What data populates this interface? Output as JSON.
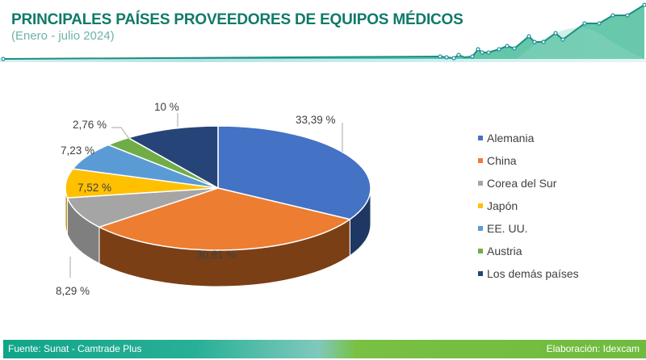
{
  "header": {
    "title": "PRINCIPALES PAÍSES PROVEEDORES DE EQUIPOS MÉDICOS",
    "subtitle": "(Enero - julio 2024)"
  },
  "footer": {
    "source": "Fuente: Sunat - Camtrade Plus",
    "credit": "Elaboración: Idexcam"
  },
  "colors": {
    "title": "#0f7a68",
    "accent": "#1aa58b",
    "footer_green": "#6fbb3f"
  },
  "chart_data": {
    "type": "pie",
    "variant": "3d",
    "title": "PRINCIPALES PAÍSES PROVEEDORES DE EQUIPOS MÉDICOS",
    "subtitle": "(Enero - julio 2024)",
    "categories": [
      "Alemania",
      "China",
      "Corea del Sur",
      "Japón",
      "EE. UU.",
      "Austria",
      "Los demás países"
    ],
    "values": [
      33.39,
      30.81,
      8.29,
      7.52,
      7.23,
      2.76,
      10
    ],
    "labels": [
      "33,39 %",
      "30,81 %",
      "8,29 %",
      "7,52 %",
      "7,23 %",
      "2,76 %",
      "10 %"
    ],
    "colors": [
      "#4472c4",
      "#ed7d31",
      "#a5a5a5",
      "#ffc000",
      "#5b9bd5",
      "#70ad47",
      "#264478"
    ],
    "side_colors": [
      "#1f3763",
      "#7a3f14",
      "#7f7f7f",
      "#b38600",
      "#3a6f9e",
      "#4a7a2c",
      "#172a4b"
    ],
    "legend_position": "right",
    "units": "%"
  }
}
